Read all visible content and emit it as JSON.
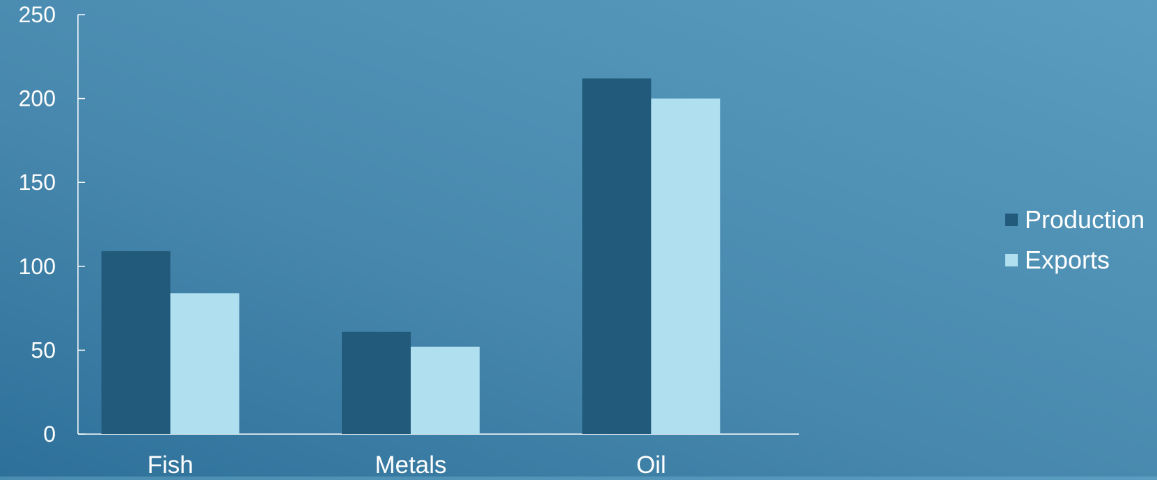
{
  "chart_data": {
    "type": "bar",
    "categories": [
      "Fish",
      "Metals",
      "Oil"
    ],
    "series": [
      {
        "name": "Production",
        "values": [
          109,
          61,
          212
        ],
        "color": "#215a7a"
      },
      {
        "name": "Exports",
        "values": [
          84,
          52,
          200
        ],
        "color": "#b0dff0"
      }
    ],
    "ylim": [
      0,
      250
    ],
    "yticks": [
      0,
      50,
      100,
      150,
      200,
      250
    ],
    "title": "",
    "xlabel": "",
    "ylabel": "",
    "grid": false,
    "legend_position": "right",
    "axis_color": "#ffffff",
    "text_color": "#ffffff"
  }
}
